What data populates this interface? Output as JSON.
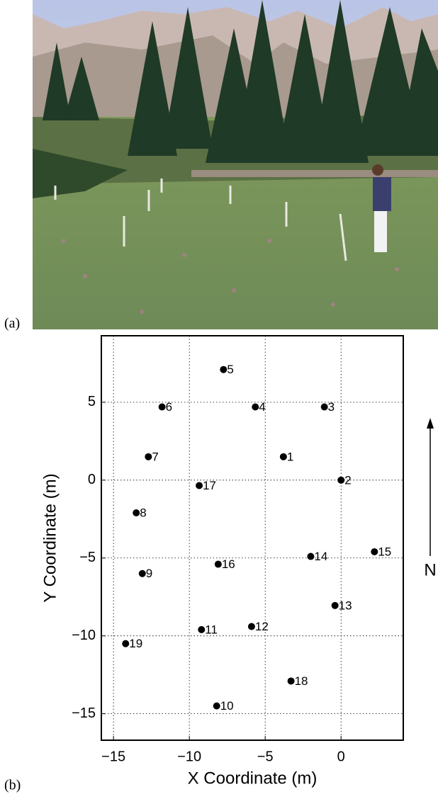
{
  "panel_labels": [
    "(a)",
    "(b)"
  ],
  "chart_data": {
    "type": "scatter",
    "xlabel": "X Coordinate (m)",
    "ylabel": "Y Coordinate (m)",
    "north_label": "N",
    "x": [
      -3.8,
      0,
      -1.1,
      -5.65,
      -7.75,
      -11.8,
      -12.7,
      -13.5,
      -13.1,
      -8.2,
      -9.2,
      -5.9,
      -0.4,
      -2.0,
      2.2,
      -8.1,
      -9.35,
      -3.3,
      -14.2
    ],
    "series": [
      {
        "color": "#000000",
        "values": [
          1.5,
          0,
          4.7,
          4.7,
          7.1,
          4.7,
          1.5,
          -2.1,
          -6.0,
          -14.5,
          -9.6,
          -9.4,
          -8.05,
          -4.9,
          -4.6,
          -5.4,
          -0.35,
          -12.9,
          -10.5
        ],
        "labels": [
          "1",
          "2",
          "3",
          "4",
          "5",
          "6",
          "7",
          "8",
          "9",
          "10",
          "11",
          "12",
          "13",
          "14",
          "15",
          "16",
          "17",
          "18",
          "19"
        ]
      }
    ],
    "xlim": [
      -15.8,
      4.1
    ],
    "ylim": [
      -16.7,
      9.27
    ],
    "xticks": [
      {
        "value": -15,
        "label": "−15"
      },
      {
        "value": -10,
        "label": "−10"
      },
      {
        "value": -5,
        "label": "−5"
      },
      0
    ],
    "yticks": [
      {
        "value": -15,
        "label": "−15"
      },
      {
        "value": -10,
        "label": "−10"
      },
      {
        "value": -5,
        "label": "−5"
      },
      0,
      5
    ],
    "grid": true
  }
}
